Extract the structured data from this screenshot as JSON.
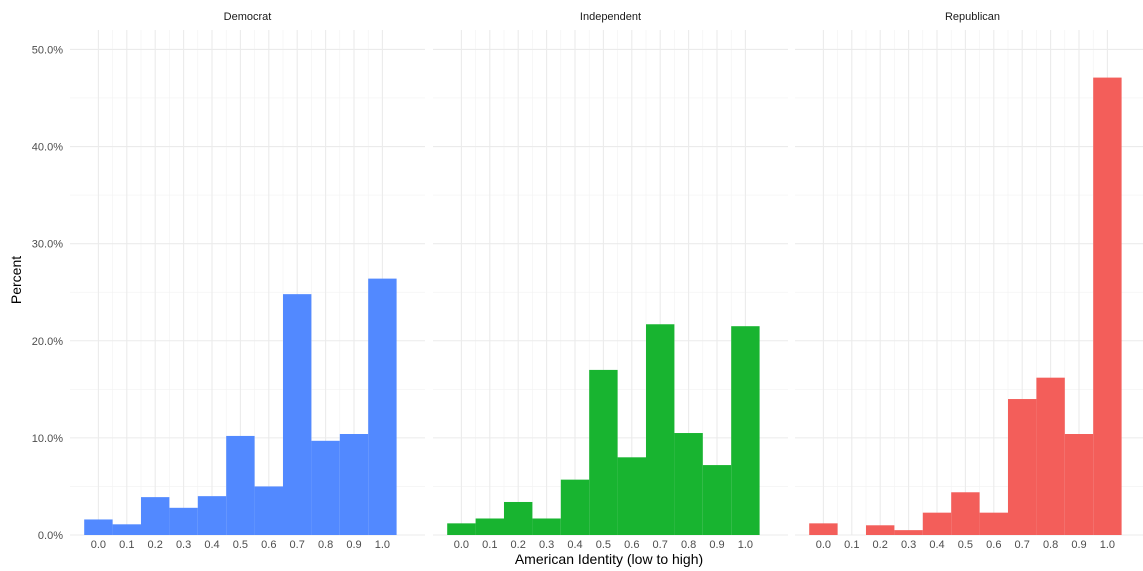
{
  "chart_data": {
    "type": "bar",
    "xlabel": "American Identity (low to high)",
    "ylabel": "Percent",
    "ylim": [
      0,
      0.52
    ],
    "xlim": [
      -0.1,
      1.15
    ],
    "y_ticks": [
      0,
      0.1,
      0.2,
      0.3,
      0.4,
      0.5
    ],
    "y_tick_labels": [
      "0.0%",
      "10.0%",
      "20.0%",
      "30.0%",
      "40.0%",
      "50.0%"
    ],
    "x_ticks": [
      0.0,
      0.1,
      0.2,
      0.3,
      0.4,
      0.5,
      0.6,
      0.7,
      0.8,
      0.9,
      1.0
    ],
    "x_tick_labels": [
      "0.0",
      "0.1",
      "0.2",
      "0.3",
      "0.4",
      "0.5",
      "0.6",
      "0.7",
      "0.8",
      "0.9",
      "1.0"
    ],
    "bin_width": 0.1,
    "grid": true,
    "legend": "none",
    "panels": [
      {
        "name": "Democrat",
        "color": "#5289FF",
        "bins": [
          0.0,
          0.1,
          0.2,
          0.3,
          0.4,
          0.5,
          0.6,
          0.7,
          0.8,
          0.9,
          1.0
        ],
        "values": [
          0.016,
          0.011,
          0.039,
          0.028,
          0.04,
          0.102,
          0.05,
          0.248,
          0.097,
          0.104,
          0.264
        ]
      },
      {
        "name": "Independent",
        "color": "#18B430",
        "bins": [
          0.0,
          0.1,
          0.2,
          0.3,
          0.4,
          0.5,
          0.6,
          0.7,
          0.8,
          0.9,
          1.0
        ],
        "values": [
          0.012,
          0.017,
          0.034,
          0.017,
          0.057,
          0.17,
          0.08,
          0.217,
          0.105,
          0.072,
          0.215
        ]
      },
      {
        "name": "Republican",
        "color": "#F35E5A",
        "bins": [
          0.0,
          0.1,
          0.2,
          0.3,
          0.4,
          0.5,
          0.6,
          0.7,
          0.8,
          0.9,
          1.0
        ],
        "values": [
          0.012,
          0.0,
          0.01,
          0.005,
          0.023,
          0.044,
          0.023,
          0.14,
          0.162,
          0.104,
          0.471
        ]
      }
    ]
  }
}
